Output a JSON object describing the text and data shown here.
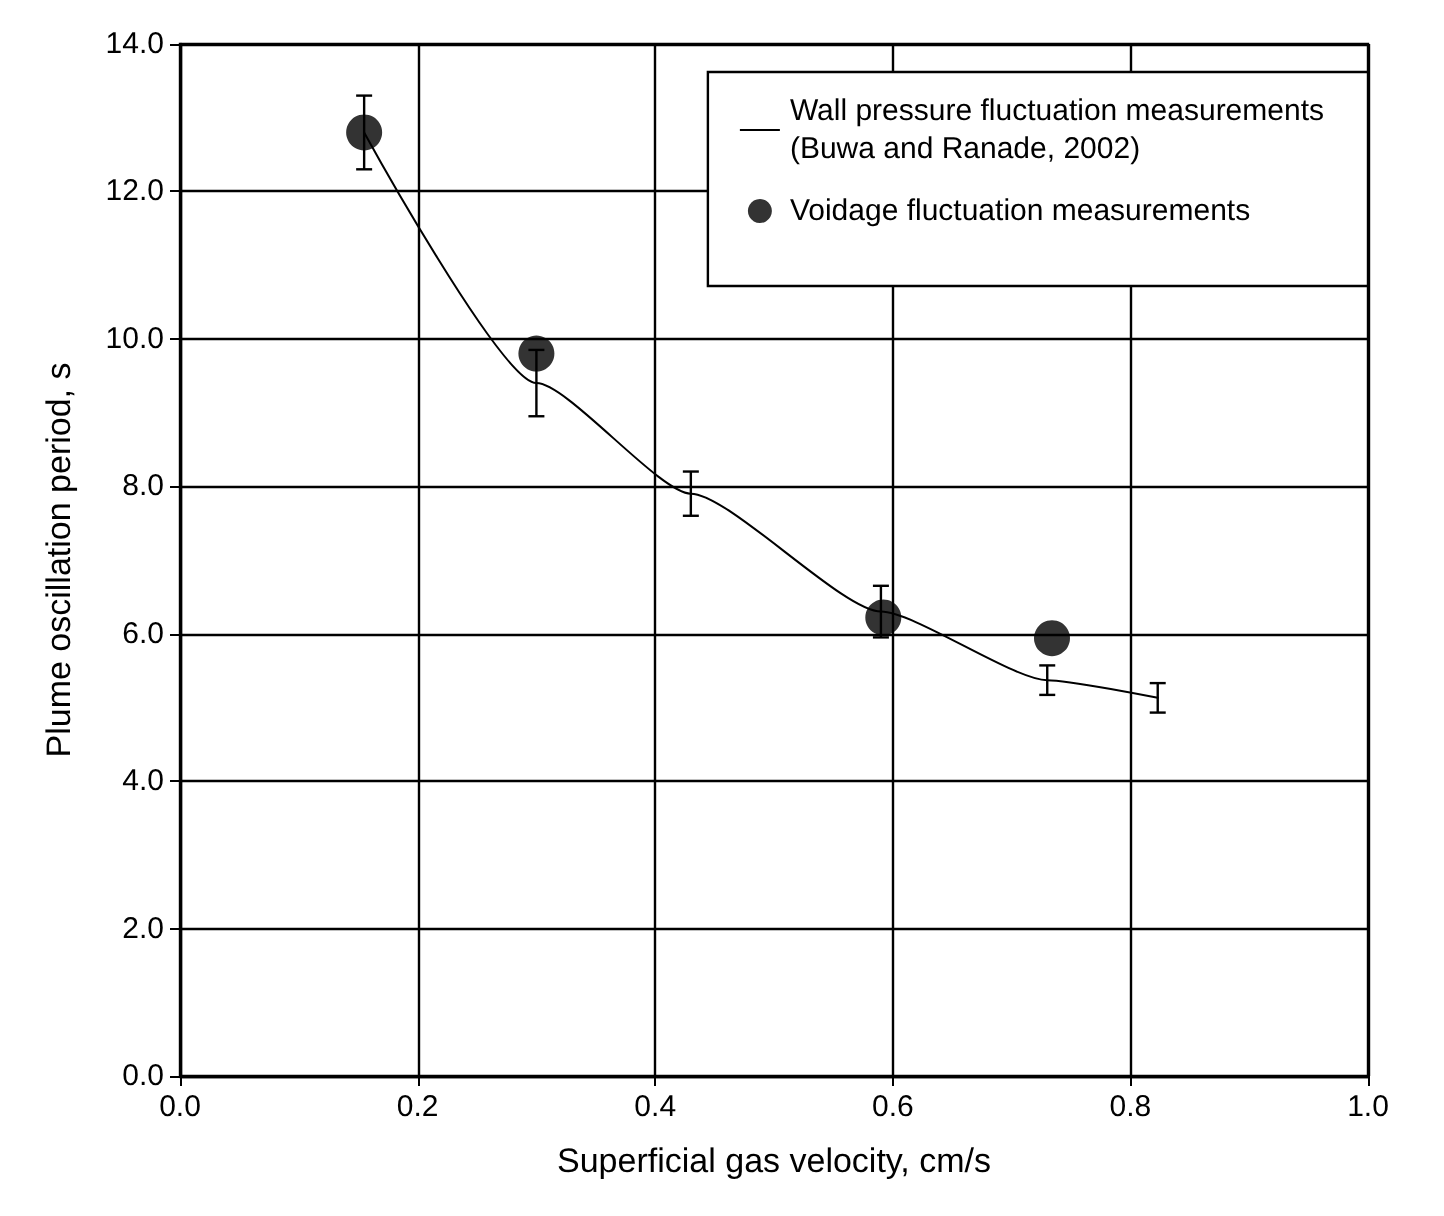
{
  "chart_data": {
    "type": "line",
    "xlabel": "Superficial gas velocity, cm/s",
    "ylabel": "Plume oscillation period, s",
    "xlim": [
      0,
      1
    ],
    "ylim": [
      0,
      14
    ],
    "xticks": [
      {
        "value": 0,
        "label": "0.0"
      },
      {
        "value": 0.2,
        "label": "0.2"
      },
      {
        "value": 0.4,
        "label": "0.4"
      },
      {
        "value": 0.6,
        "label": "0.6"
      },
      {
        "value": 0.8,
        "label": "0.8"
      },
      {
        "value": 1,
        "label": "1.0"
      }
    ],
    "yticks": [
      {
        "value": 0,
        "label": "0.0"
      },
      {
        "value": 2,
        "label": "2.0"
      },
      {
        "value": 4,
        "label": "4.0"
      },
      {
        "value": 6,
        "label": "6.0"
      },
      {
        "value": 8,
        "label": "8.0"
      },
      {
        "value": 10,
        "label": "10.0"
      },
      {
        "value": 12,
        "label": "12.0"
      },
      {
        "value": 14,
        "label": "14.0"
      }
    ],
    "grid": true,
    "legend": "top right",
    "series": [
      {
        "name": "Wall pressure fluctuation measurements\n(Buwa and Ranade, 2002)",
        "color": "#000000",
        "marker": "none",
        "line_style": "solid",
        "x": [
          0.155,
          0.3,
          0.43,
          0.59,
          0.73,
          0.823
        ],
        "values": [
          12.8,
          9.4,
          7.9,
          6.3,
          5.37,
          5.13
        ],
        "errors": [
          0.5,
          0.45,
          0.3,
          0.35,
          0.2,
          0.2
        ]
      },
      {
        "name": "Voidage fluctuation measurements",
        "type": "scatter",
        "color": "#000000",
        "marker": "circle",
        "x": [
          0.155,
          0.3,
          0.592,
          0.734
        ],
        "values": [
          12.8,
          9.8,
          6.22,
          5.94
        ]
      }
    ]
  }
}
